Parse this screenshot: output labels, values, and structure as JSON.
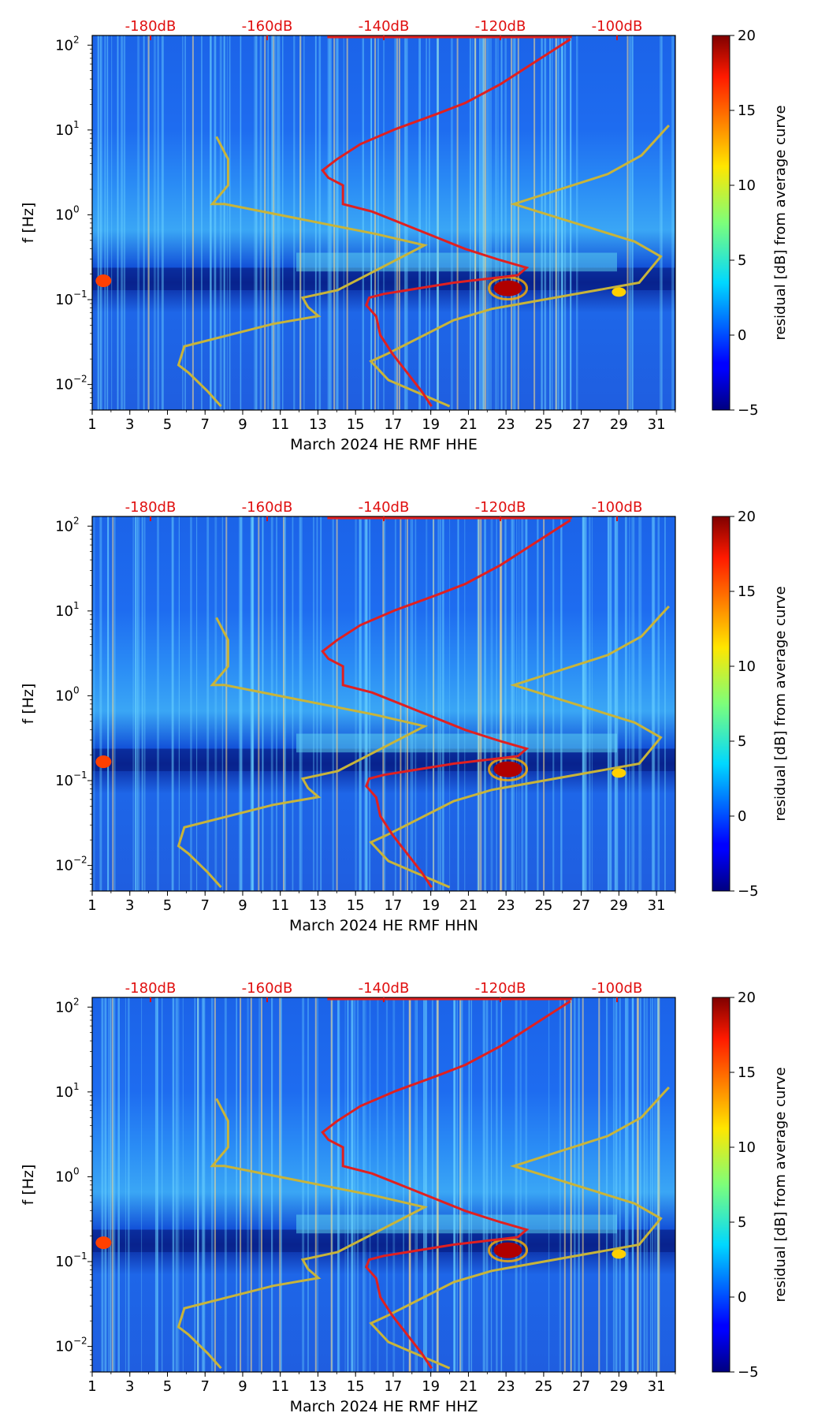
{
  "colorbar_ticks": [
    "20",
    "15",
    "10",
    "5",
    "0",
    "−5"
  ],
  "chart_data": [
    {
      "type": "heatmap",
      "channel": "HHE",
      "xlabel": "March 2024 HE RMF  HHE",
      "ylabel": "f [Hz]",
      "colorbar_label": "residual [dB] from average curve",
      "color_range": [
        -5,
        20
      ],
      "x_range": [
        1,
        32
      ],
      "x_ticks": [
        "1",
        "3",
        "5",
        "7",
        "9",
        "11",
        "13",
        "15",
        "17",
        "19",
        "21",
        "23",
        "25",
        "27",
        "29",
        "31"
      ],
      "y_scale": "log",
      "y_range_hz": [
        0.005,
        130
      ],
      "y_ticks": [
        {
          "label": "10",
          "exp": "2"
        },
        {
          "label": "10",
          "exp": "1"
        },
        {
          "label": "10",
          "exp": "0"
        },
        {
          "label": "10",
          "exp": "−1"
        },
        {
          "label": "10",
          "exp": "−2"
        }
      ],
      "top_axis_labels": [
        "-180dB",
        "-160dB",
        "-140dB",
        "-120dB",
        "-100dB"
      ],
      "red_curve": "average PSD (dB) vs frequency"
    },
    {
      "type": "heatmap",
      "channel": "HHN",
      "xlabel": "March 2024 HE RMF  HHN",
      "ylabel": "f [Hz]",
      "colorbar_label": "residual [dB] from average curve",
      "color_range": [
        -5,
        20
      ],
      "x_range": [
        1,
        32
      ],
      "x_ticks": [
        "1",
        "3",
        "5",
        "7",
        "9",
        "11",
        "13",
        "15",
        "17",
        "19",
        "21",
        "23",
        "25",
        "27",
        "29",
        "31"
      ],
      "y_scale": "log",
      "y_range_hz": [
        0.005,
        130
      ],
      "y_ticks": [
        {
          "label": "10",
          "exp": "2"
        },
        {
          "label": "10",
          "exp": "1"
        },
        {
          "label": "10",
          "exp": "0"
        },
        {
          "label": "10",
          "exp": "−1"
        },
        {
          "label": "10",
          "exp": "−2"
        }
      ],
      "top_axis_labels": [
        "-180dB",
        "-160dB",
        "-140dB",
        "-120dB",
        "-100dB"
      ],
      "red_curve": "average PSD (dB) vs frequency"
    },
    {
      "type": "heatmap",
      "channel": "HHZ",
      "xlabel": "March 2024 HE RMF  HHZ",
      "ylabel": "f [Hz]",
      "colorbar_label": "residual [dB] from average curve",
      "color_range": [
        -5,
        20
      ],
      "x_range": [
        1,
        32
      ],
      "x_ticks": [
        "1",
        "3",
        "5",
        "7",
        "9",
        "11",
        "13",
        "15",
        "17",
        "19",
        "21",
        "23",
        "25",
        "27",
        "29",
        "31"
      ],
      "y_scale": "log",
      "y_range_hz": [
        0.005,
        130
      ],
      "y_ticks": [
        {
          "label": "10",
          "exp": "2"
        },
        {
          "label": "10",
          "exp": "1"
        },
        {
          "label": "10",
          "exp": "0"
        },
        {
          "label": "10",
          "exp": "−1"
        },
        {
          "label": "10",
          "exp": "−2"
        }
      ],
      "top_axis_labels": [
        "-180dB",
        "-160dB",
        "-140dB",
        "-120dB",
        "-100dB"
      ],
      "red_curve": "average PSD (dB) vs frequency"
    }
  ]
}
